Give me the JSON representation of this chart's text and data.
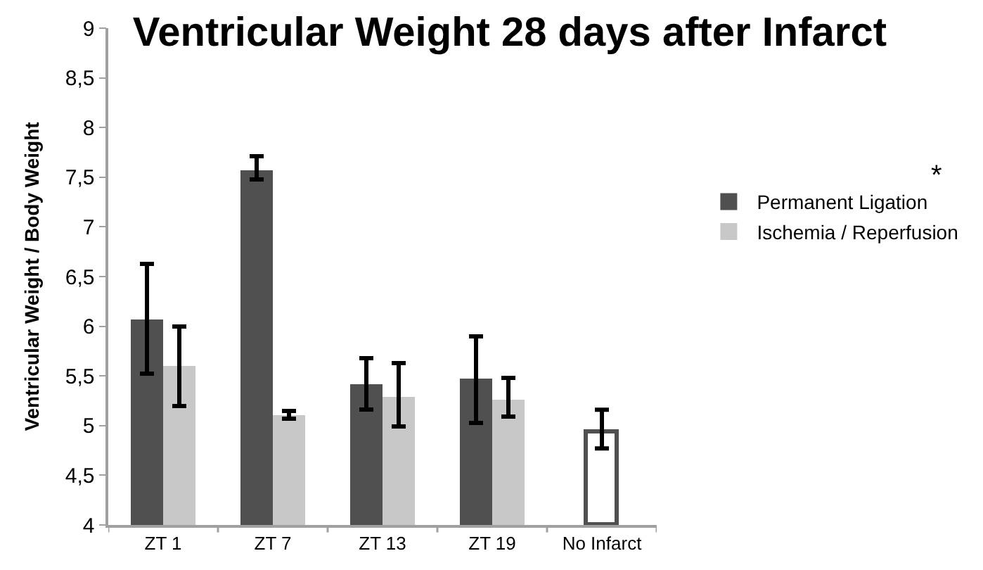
{
  "chart_data": {
    "type": "bar",
    "title": "Ventricular Weight 28 days after Infarct",
    "ylabel": "Ventricular Weight / Body Weight",
    "categories": [
      "ZT 1",
      "ZT 7",
      "ZT 13",
      "ZT 19",
      "No Infarct"
    ],
    "series": [
      {
        "name": "Permanent Ligation",
        "color": "#505050",
        "values": [
          6.07,
          7.57,
          5.42,
          5.47,
          null
        ],
        "errors": [
          [
            5.52,
            6.63
          ],
          [
            7.48,
            7.71
          ],
          [
            5.16,
            5.68
          ],
          [
            5.03,
            5.9
          ],
          null
        ]
      },
      {
        "name": "Ischemia / Reperfusion",
        "color": "#c8c8c8",
        "values": [
          5.6,
          5.1,
          5.29,
          5.26,
          null
        ],
        "errors": [
          [
            5.2,
            6.0
          ],
          [
            5.07,
            5.15
          ],
          [
            4.99,
            5.63
          ],
          [
            5.09,
            5.48
          ],
          null
        ]
      },
      {
        "color": "#ffffff",
        "values": [
          null,
          null,
          null,
          null,
          4.94
        ],
        "errors": [
          null,
          null,
          null,
          null,
          [
            4.77,
            5.16
          ]
        ]
      }
    ],
    "ylim": [
      4,
      9
    ],
    "yticks": [
      4,
      {
        "value": 4.5,
        "label": "4,5"
      },
      5,
      {
        "value": 5.5,
        "label": "5,5"
      },
      6,
      {
        "value": 6.5,
        "label": "6,5"
      },
      7,
      {
        "value": 7.5,
        "label": "7,5"
      },
      8,
      {
        "value": 8.5,
        "label": "8,5"
      },
      9
    ],
    "annotations": [
      "*"
    ],
    "legend": "right",
    "grid": false
  }
}
